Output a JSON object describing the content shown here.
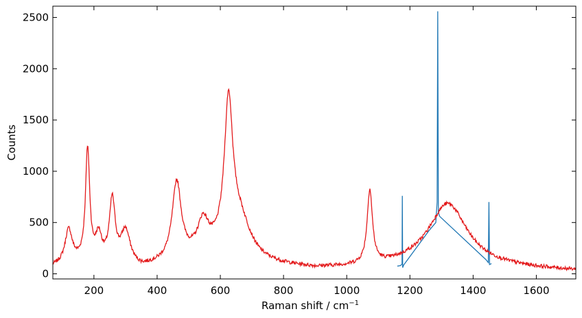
{
  "chart_data": {
    "type": "line",
    "title": "",
    "xlabel": "Raman shift / cm",
    "xlabel_superscript": "−1",
    "ylabel": "Counts",
    "xlim": [
      70,
      1725
    ],
    "ylim": [
      -50,
      2610
    ],
    "x_ticks": [
      200,
      400,
      600,
      800,
      1000,
      1200,
      1400,
      1600
    ],
    "y_ticks": [
      0,
      500,
      1000,
      1500,
      2000,
      2500
    ],
    "grid": false,
    "legend": "none",
    "series": [
      {
        "color": "#1f77b4",
        "points": [
          [
            1160,
            75
          ],
          [
            1170,
            80
          ],
          [
            1175,
            95
          ],
          [
            1176,
            760
          ],
          [
            1177,
            60
          ],
          [
            1180,
            85
          ],
          [
            1260,
            420
          ],
          [
            1282,
            500
          ],
          [
            1286,
            700
          ],
          [
            1288,
            2560
          ],
          [
            1290,
            600
          ],
          [
            1294,
            560
          ],
          [
            1440,
            140
          ],
          [
            1448,
            110
          ],
          [
            1450,
            700
          ],
          [
            1452,
            90
          ],
          [
            1458,
            100
          ]
        ]
      },
      {
        "color": "#e31a1c",
        "peaks": [
          {
            "x": 120,
            "height": 330,
            "width": 14
          },
          {
            "x": 180,
            "height": 1090,
            "width": 8
          },
          {
            "x": 215,
            "height": 250,
            "width": 12
          },
          {
            "x": 258,
            "height": 610,
            "width": 11
          },
          {
            "x": 300,
            "height": 330,
            "width": 18
          },
          {
            "x": 462,
            "height": 750,
            "width": 17
          },
          {
            "x": 545,
            "height": 280,
            "width": 20
          },
          {
            "x": 626,
            "height": 1380,
            "width": 16
          },
          {
            "x": 660,
            "height": 380,
            "width": 45
          },
          {
            "x": 1073,
            "height": 720,
            "width": 10
          },
          {
            "x": 1320,
            "height": 620,
            "width": 75
          }
        ],
        "baseline": [
          [
            70,
            60
          ],
          [
            160,
            100
          ],
          [
            350,
            40
          ],
          [
            560,
            180
          ],
          [
            720,
            80
          ],
          [
            900,
            40
          ],
          [
            1050,
            50
          ],
          [
            1200,
            70
          ],
          [
            1500,
            50
          ],
          [
            1725,
            25
          ]
        ],
        "noise_amplitude": 35,
        "sample_step": 1.5
      }
    ]
  }
}
